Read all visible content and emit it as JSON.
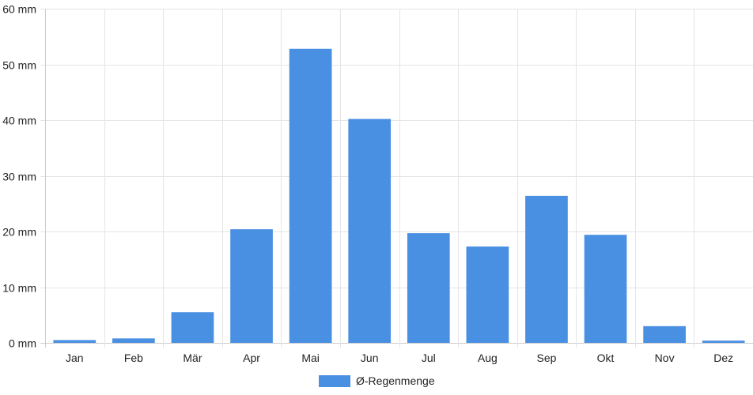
{
  "chart_data": {
    "type": "bar",
    "categories": [
      "Jan",
      "Feb",
      "Mär",
      "Apr",
      "Mai",
      "Jun",
      "Jul",
      "Aug",
      "Sep",
      "Okt",
      "Nov",
      "Dez"
    ],
    "series": [
      {
        "name": "Ø-Regenmenge",
        "values": [
          0.5,
          0.8,
          5.5,
          20.4,
          52.8,
          40.2,
          19.7,
          17.3,
          26.4,
          19.4,
          3.0,
          0.4
        ],
        "color": "#4a90e2"
      }
    ],
    "y_ticks": [
      "0 mm",
      "10 mm",
      "20 mm",
      "30 mm",
      "40 mm",
      "50 mm",
      "60 mm"
    ],
    "ylim": [
      0,
      60
    ],
    "grid": true,
    "legend_position": "bottom",
    "colors": {
      "grid": "#e5e5e5",
      "axis": "#cccccc",
      "bar": "#4a90e2"
    }
  }
}
